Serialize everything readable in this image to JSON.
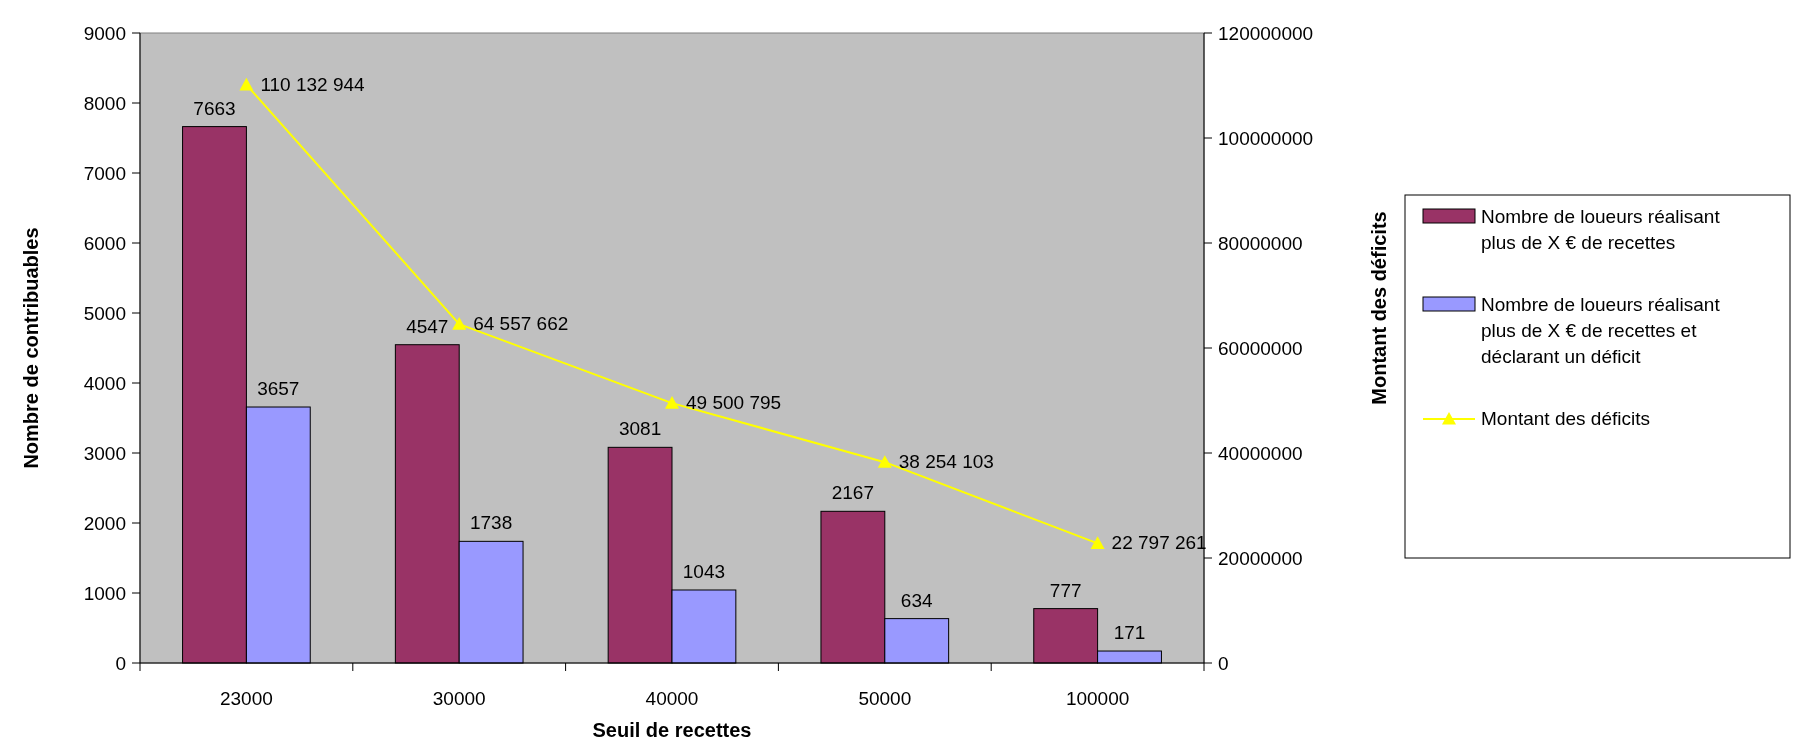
{
  "chart_data": {
    "type": "bar",
    "xlabel": "Seuil de recettes",
    "ylabel": "Nombre de contribuables",
    "y2label": "Montant des déficits",
    "categories": [
      "23000",
      "30000",
      "40000",
      "50000",
      "100000"
    ],
    "series": [
      {
        "name": "Nombre de loueurs réalisant plus de X € de recettes",
        "color": "#993366",
        "values": [
          7663,
          4547,
          3081,
          2167,
          777
        ]
      },
      {
        "name": "Nombre de loueurs réalisant plus de X € de recettes et déclarant un déficit",
        "color": "#9999ff",
        "values": [
          3657,
          1738,
          1043,
          634,
          171
        ]
      },
      {
        "name": "Montant des déficits",
        "type": "line",
        "axis": "y2",
        "color": "#ffff00",
        "marker": "triangle",
        "values": [
          110132944,
          64557662,
          49500795,
          38254103,
          22797261
        ],
        "value_labels": [
          "110 132 944",
          "64 557 662",
          "49 500 795",
          "38 254 103",
          "22 797 261"
        ]
      }
    ],
    "ylim": [
      0,
      9000
    ],
    "yticks": [
      0,
      1000,
      2000,
      3000,
      4000,
      5000,
      6000,
      7000,
      8000,
      9000
    ],
    "y2lim": [
      0,
      120000000
    ],
    "y2ticks": [
      0,
      20000000,
      40000000,
      60000000,
      80000000,
      100000000,
      120000000
    ],
    "data_labels": true,
    "legend": "right",
    "grid": false
  }
}
